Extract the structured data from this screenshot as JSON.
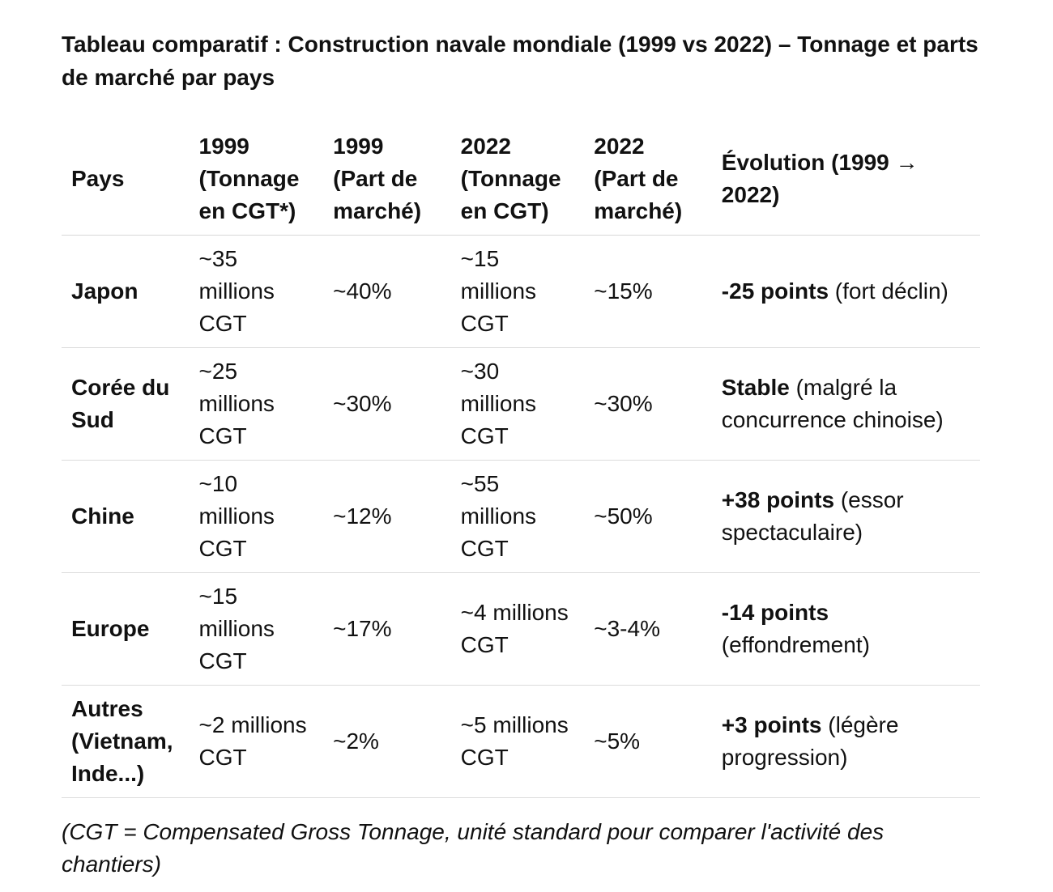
{
  "title": "Tableau comparatif : Construction navale mondiale (1999 vs 2022) – Tonnage et parts de marché par pays",
  "table": {
    "headers": {
      "pays": "Pays",
      "tonnage_1999": "1999 (Tonnage en CGT*)",
      "part_1999": "1999 (Part de marché)",
      "tonnage_2022": "2022 (Tonnage en CGT)",
      "part_2022": "2022 (Part de marché)",
      "evolution": "Évolution (1999 → 2022)"
    },
    "rows": [
      {
        "pays": "Japon",
        "tonnage_1999": "~35 millions CGT",
        "part_1999": "~40%",
        "tonnage_2022": "~15 millions CGT",
        "part_2022": "~15%",
        "evolution_strong": "-25 points",
        "evolution_rest": " (fort déclin)"
      },
      {
        "pays": "Corée du Sud",
        "tonnage_1999": "~25 millions CGT",
        "part_1999": "~30%",
        "tonnage_2022": "~30 millions CGT",
        "part_2022": "~30%",
        "evolution_strong": "Stable",
        "evolution_rest": " (malgré la concurrence chinoise)"
      },
      {
        "pays": "Chine",
        "tonnage_1999": "~10 millions CGT",
        "part_1999": "~12%",
        "tonnage_2022": "~55 millions CGT",
        "part_2022": "~50%",
        "evolution_strong": "+38 points",
        "evolution_rest": " (essor spectaculaire)"
      },
      {
        "pays": "Europe",
        "tonnage_1999": "~15 millions CGT",
        "part_1999": "~17%",
        "tonnage_2022": "~4 millions CGT",
        "part_2022": "~3-4%",
        "evolution_strong": "-14 points",
        "evolution_rest": " (effondrement)"
      },
      {
        "pays": "Autres (Vietnam, Inde...)",
        "tonnage_1999": "~2 millions CGT",
        "part_1999": "~2%",
        "tonnage_2022": "~5 millions CGT",
        "part_2022": "~5%",
        "evolution_strong": "+3 points",
        "evolution_rest": " (légère progression)"
      }
    ]
  },
  "footnote": "(CGT = Compensated Gross Tonnage, unité standard pour comparer l'activité des chantiers)"
}
